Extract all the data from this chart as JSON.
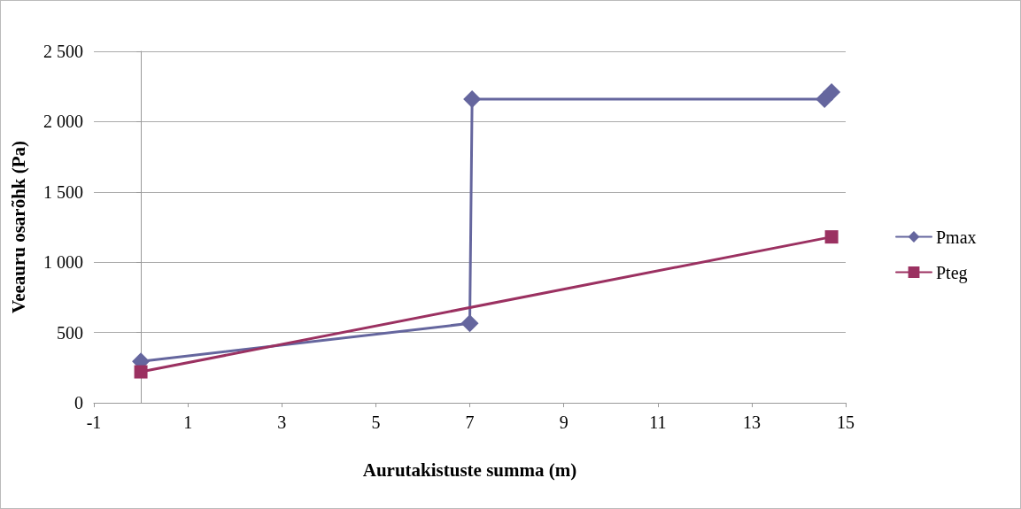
{
  "chart_data": {
    "type": "line",
    "xlabel": "Aurutakistuste summa (m)",
    "ylabel": "Veeauru osarõhk (Pa)",
    "series": [
      {
        "name": "Pmax",
        "color": "#65669e",
        "marker": "diamond",
        "x": [
          0,
          7,
          7.05,
          14.55,
          14.7
        ],
        "values": [
          295,
          565,
          2160,
          2160,
          2210
        ]
      },
      {
        "name": "Pteg",
        "color": "#9b3161",
        "marker": "square",
        "x": [
          0,
          14.7
        ],
        "values": [
          220,
          1180
        ]
      }
    ],
    "xlim": [
      -1,
      15
    ],
    "xticks": [
      -1,
      1,
      3,
      5,
      7,
      9,
      11,
      13,
      15
    ],
    "ylim": [
      0,
      2500
    ],
    "yticks": [
      0,
      500,
      {
        "value": 1000,
        "label": "1 000"
      },
      {
        "value": 1500,
        "label": "1 500"
      },
      {
        "value": 2000,
        "label": "2 000"
      },
      {
        "value": 2500,
        "label": "2 500"
      }
    ],
    "grid": "y",
    "legend": "right",
    "line_style": "solid"
  }
}
